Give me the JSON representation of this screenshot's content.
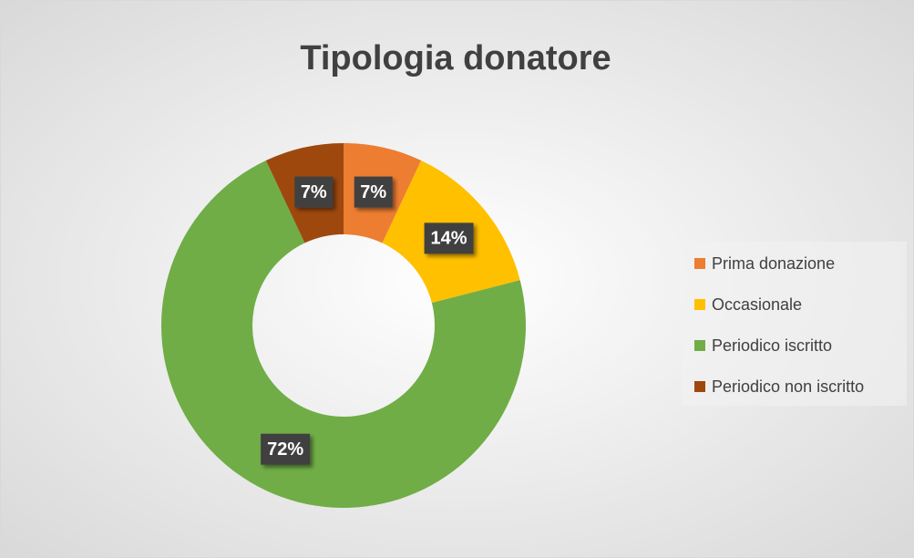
{
  "chart_data": {
    "type": "donut",
    "title": "Tipologia donatore",
    "categories": [
      "Prima donazione",
      "Occasionale",
      "Periodico iscritto",
      "Periodico non iscritto"
    ],
    "values": [
      7,
      14,
      72,
      7
    ],
    "value_labels": [
      "7%",
      "14%",
      "72%",
      "7%"
    ],
    "colors": [
      "#ED7D31",
      "#FFC000",
      "#70AD47",
      "#9E480E"
    ],
    "legend": "right"
  }
}
